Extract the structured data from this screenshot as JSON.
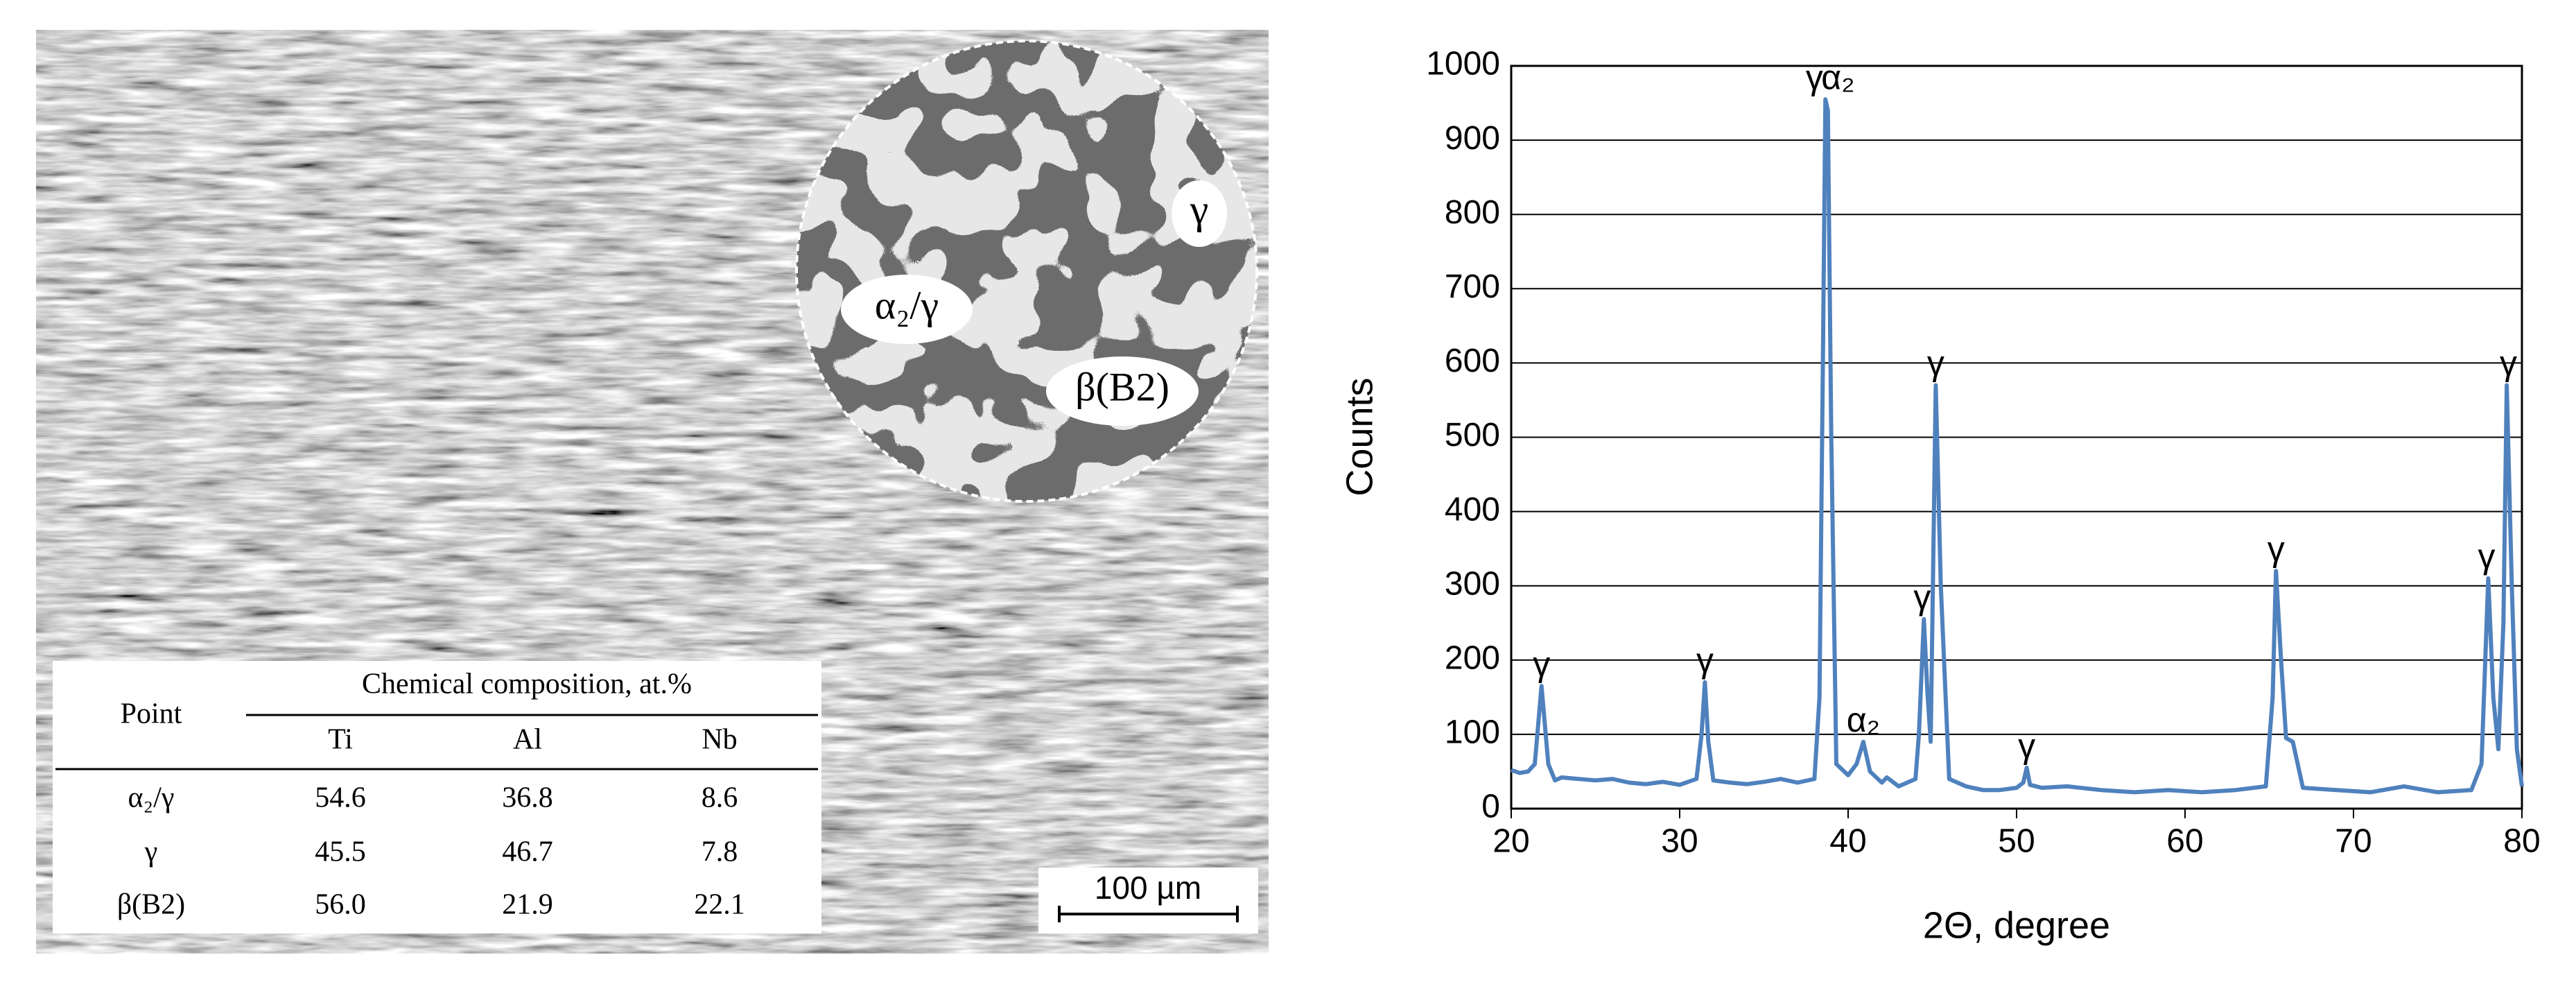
{
  "micrograph": {
    "labels": [
      "γ",
      "α₂/γ",
      "β(B2)"
    ],
    "scale_bar": "100 µm",
    "table": {
      "header": [
        "Point",
        "Chemical composition, at.%"
      ],
      "columns": [
        "Ti",
        "Al",
        "Nb"
      ],
      "rows": [
        [
          "α₂/γ",
          "54.6",
          "36.8",
          "8.6"
        ],
        [
          "γ",
          "45.5",
          "46.7",
          "7.8"
        ],
        [
          "β(B2)",
          "56.0",
          "21.9",
          "22.1"
        ]
      ]
    }
  },
  "chart_data": {
    "type": "line",
    "xlabel": "2Θ, degree",
    "ylabel": "Counts",
    "color": "#4f81bd",
    "grid": true,
    "xlim": [
      20,
      80
    ],
    "xticks": [
      20,
      30,
      40,
      50,
      60,
      70,
      80
    ],
    "ylim": [
      0,
      1000
    ],
    "yticks": [
      0,
      100,
      200,
      300,
      400,
      500,
      600,
      700,
      800,
      900,
      1000
    ],
    "x": [
      20,
      20.5,
      21,
      21.4,
      21.8,
      22.2,
      22.6,
      23,
      24,
      25,
      26,
      27,
      28,
      29,
      30,
      31,
      31.3,
      31.5,
      31.7,
      32,
      33,
      34,
      35,
      36,
      37,
      38,
      38.3,
      38.5,
      38.65,
      38.8,
      39,
      39.3,
      40,
      40.5,
      40.9,
      41.3,
      42,
      42.3,
      43,
      44,
      44.2,
      44.5,
      44.7,
      44.9,
      45.2,
      45.5,
      46,
      47,
      48,
      49,
      50,
      50.4,
      50.6,
      50.8,
      51.5,
      53,
      55,
      57,
      59,
      61,
      63,
      64.8,
      65.2,
      65.4,
      65.7,
      66,
      66.4,
      67,
      69,
      71,
      73,
      75,
      77,
      77.6,
      78,
      78.3,
      78.6,
      78.9,
      79.1,
      79.4,
      79.7,
      80
    ],
    "values": [
      52,
      48,
      50,
      60,
      165,
      60,
      38,
      42,
      40,
      38,
      40,
      35,
      33,
      36,
      32,
      40,
      100,
      170,
      90,
      38,
      35,
      33,
      36,
      40,
      35,
      40,
      150,
      600,
      955,
      940,
      500,
      60,
      45,
      60,
      90,
      50,
      35,
      42,
      30,
      40,
      100,
      255,
      160,
      90,
      570,
      300,
      40,
      30,
      25,
      25,
      28,
      35,
      55,
      32,
      28,
      30,
      25,
      22,
      25,
      22,
      25,
      30,
      150,
      320,
      200,
      95,
      90,
      28,
      25,
      22,
      30,
      22,
      25,
      60,
      310,
      150,
      80,
      250,
      570,
      300,
      80,
      30
    ],
    "annotations": [
      {
        "text": "γ",
        "x": 21.8,
        "y": 165
      },
      {
        "text": "γ",
        "x": 31.5,
        "y": 170
      },
      {
        "text": "γ",
        "x": 38.0,
        "y": 955
      },
      {
        "text": "α₂",
        "x": 39.4,
        "y": 955
      },
      {
        "text": "α₂",
        "x": 40.9,
        "y": 90
      },
      {
        "text": "γ",
        "x": 44.4,
        "y": 255
      },
      {
        "text": "γ",
        "x": 45.2,
        "y": 570
      },
      {
        "text": "γ",
        "x": 50.6,
        "y": 55
      },
      {
        "text": "γ",
        "x": 65.4,
        "y": 320
      },
      {
        "text": "γ",
        "x": 77.9,
        "y": 310
      },
      {
        "text": "γ",
        "x": 79.2,
        "y": 570
      }
    ]
  }
}
